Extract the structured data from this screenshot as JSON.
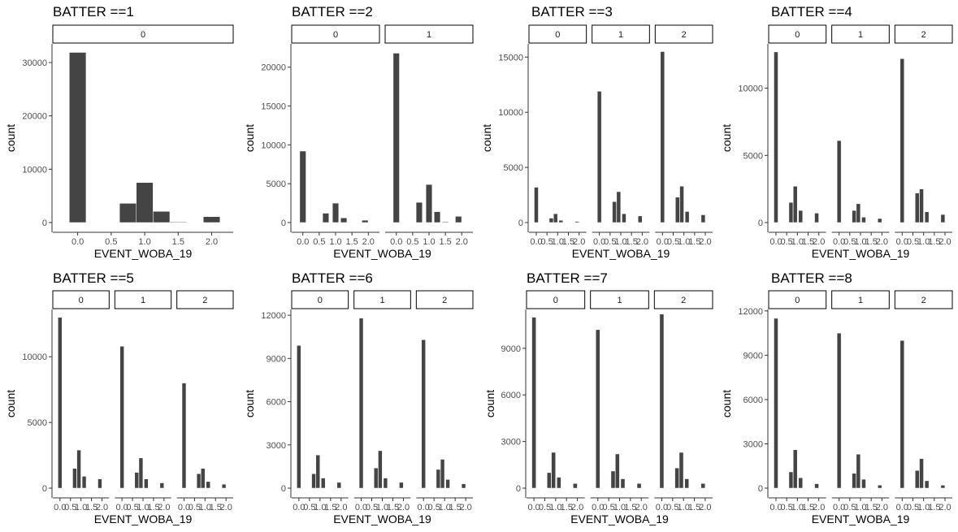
{
  "chart_data": [
    {
      "type": "bar",
      "title": "BATTER ==1",
      "xlabel": "EVENT_WOBA_19",
      "ylabel": "count",
      "yticks": [
        0,
        10000,
        20000,
        30000
      ],
      "ylim": [
        0,
        33500
      ],
      "xticks": [
        "0.0",
        "0.5",
        "1.0",
        "1.5",
        "2.0"
      ],
      "bin_width": 0.25,
      "xlim": [
        -0.25,
        2.2
      ],
      "facets": [
        {
          "label": "0",
          "x": [
            0.0,
            0.75,
            1.0,
            1.25,
            1.5,
            2.0
          ],
          "values": [
            31900,
            3600,
            7500,
            2100,
            100,
            1100
          ]
        }
      ]
    },
    {
      "type": "bar",
      "title": "BATTER ==2",
      "xlabel": "EVENT_WOBA_19",
      "ylabel": "count",
      "yticks": [
        0,
        5000,
        10000,
        15000,
        20000
      ],
      "ylim": [
        0,
        23000
      ],
      "xticks": [
        "0.0",
        "0.5",
        "1.0",
        "1.5",
        "2.0"
      ],
      "bin_width": 0.19,
      "xlim": [
        -0.22,
        2.22
      ],
      "facets": [
        {
          "label": "0",
          "x": [
            0.0,
            0.7,
            1.0,
            1.25,
            1.9
          ],
          "values": [
            9200,
            1200,
            2500,
            600,
            300
          ]
        },
        {
          "label": "1",
          "x": [
            0.0,
            0.7,
            1.0,
            1.25,
            1.5,
            1.9
          ],
          "values": [
            21800,
            2600,
            4900,
            1400,
            100,
            800
          ]
        }
      ]
    },
    {
      "type": "bar",
      "title": "BATTER ==3",
      "xlabel": "EVENT_WOBA_19",
      "ylabel": "count",
      "yticks": [
        0,
        5000,
        10000,
        15000
      ],
      "ylim": [
        0,
        16200
      ],
      "xticks": [
        "0.0",
        "0.5",
        "1.0",
        "1.5",
        "2.0"
      ],
      "bin_width": 0.19,
      "xlim": [
        -0.22,
        2.22
      ],
      "facets": [
        {
          "label": "0",
          "x": [
            0.0,
            0.7,
            0.9,
            1.15,
            1.9
          ],
          "values": [
            3200,
            400,
            800,
            200,
            100
          ]
        },
        {
          "label": "1",
          "x": [
            0.0,
            0.7,
            0.9,
            1.15,
            1.9
          ],
          "values": [
            11900,
            1900,
            2800,
            800,
            600
          ]
        },
        {
          "label": "2",
          "x": [
            0.0,
            0.7,
            0.9,
            1.15,
            1.9
          ],
          "values": [
            15500,
            2300,
            3300,
            1000,
            700
          ]
        }
      ]
    },
    {
      "type": "bar",
      "title": "BATTER ==4",
      "xlabel": "EVENT_WOBA_19",
      "ylabel": "count",
      "yticks": [
        0,
        5000,
        10000
      ],
      "ylim": [
        0,
        13300
      ],
      "xticks": [
        "0.0",
        "0.5",
        "1.0",
        "1.5",
        "2.0"
      ],
      "bin_width": 0.19,
      "xlim": [
        -0.22,
        2.22
      ],
      "facets": [
        {
          "label": "0",
          "x": [
            0.0,
            0.7,
            0.9,
            1.15,
            1.9
          ],
          "values": [
            12700,
            1500,
            2700,
            900,
            700
          ]
        },
        {
          "label": "1",
          "x": [
            0.0,
            0.7,
            0.9,
            1.15,
            1.9
          ],
          "values": [
            6100,
            900,
            1400,
            400,
            300
          ]
        },
        {
          "label": "2",
          "x": [
            0.0,
            0.7,
            0.9,
            1.15,
            1.9
          ],
          "values": [
            12200,
            2200,
            2500,
            800,
            600
          ]
        }
      ]
    },
    {
      "type": "bar",
      "title": "BATTER ==5",
      "xlabel": "EVENT_WOBA_19",
      "ylabel": "count",
      "yticks": [
        0,
        5000,
        10000
      ],
      "ylim": [
        0,
        13600
      ],
      "xticks": [
        "0.0",
        "0.5",
        "1.0",
        "1.5",
        "2.0"
      ],
      "bin_width": 0.19,
      "xlim": [
        -0.22,
        2.22
      ],
      "facets": [
        {
          "label": "0",
          "x": [
            0.0,
            0.7,
            0.9,
            1.15,
            1.9
          ],
          "values": [
            13000,
            1500,
            2900,
            900,
            700
          ]
        },
        {
          "label": "1",
          "x": [
            0.0,
            0.7,
            0.9,
            1.15,
            1.9
          ],
          "values": [
            10800,
            1200,
            2300,
            700,
            400
          ]
        },
        {
          "label": "2",
          "x": [
            0.0,
            0.7,
            0.9,
            1.15,
            1.9
          ],
          "values": [
            8000,
            1100,
            1500,
            500,
            300
          ]
        }
      ]
    },
    {
      "type": "bar",
      "title": "BATTER ==6",
      "xlabel": "EVENT_WOBA_19",
      "ylabel": "count",
      "yticks": [
        0,
        3000,
        6000,
        9000,
        12000
      ],
      "ylim": [
        0,
        12400
      ],
      "xticks": [
        "0.0",
        "0.5",
        "1.0",
        "1.5",
        "2.0"
      ],
      "bin_width": 0.19,
      "xlim": [
        -0.22,
        2.22
      ],
      "facets": [
        {
          "label": "0",
          "x": [
            0.0,
            0.7,
            0.9,
            1.15,
            1.9
          ],
          "values": [
            9900,
            1000,
            2300,
            700,
            400
          ]
        },
        {
          "label": "1",
          "x": [
            0.0,
            0.7,
            0.9,
            1.15,
            1.9
          ],
          "values": [
            11800,
            1400,
            2600,
            700,
            400
          ]
        },
        {
          "label": "2",
          "x": [
            0.0,
            0.7,
            0.9,
            1.15,
            1.9
          ],
          "values": [
            10300,
            1300,
            2000,
            600,
            300
          ]
        }
      ]
    },
    {
      "type": "bar",
      "title": "BATTER ==7",
      "xlabel": "EVENT_WOBA_19",
      "ylabel": "count",
      "yticks": [
        0,
        3000,
        6000,
        9000
      ],
      "ylim": [
        0,
        11500
      ],
      "xticks": [
        "0.0",
        "0.5",
        "1.0",
        "1.5",
        "2.0"
      ],
      "bin_width": 0.19,
      "xlim": [
        -0.22,
        2.22
      ],
      "facets": [
        {
          "label": "0",
          "x": [
            0.0,
            0.7,
            0.9,
            1.15,
            1.9
          ],
          "values": [
            11000,
            1000,
            2300,
            700,
            300
          ]
        },
        {
          "label": "1",
          "x": [
            0.0,
            0.7,
            0.9,
            1.15,
            1.9
          ],
          "values": [
            10200,
            1100,
            2200,
            600,
            300
          ]
        },
        {
          "label": "2",
          "x": [
            0.0,
            0.7,
            0.9,
            1.15,
            1.9
          ],
          "values": [
            11200,
            1300,
            2300,
            600,
            300
          ]
        }
      ]
    },
    {
      "type": "bar",
      "title": "BATTER ==8",
      "xlabel": "EVENT_WOBA_19",
      "ylabel": "count",
      "yticks": [
        0,
        3000,
        6000,
        9000,
        12000
      ],
      "ylim": [
        0,
        12100
      ],
      "xticks": [
        "0.0",
        "0.5",
        "1.0",
        "1.5",
        "2.0"
      ],
      "bin_width": 0.19,
      "xlim": [
        -0.22,
        2.22
      ],
      "facets": [
        {
          "label": "0",
          "x": [
            0.0,
            0.7,
            0.9,
            1.15,
            1.9
          ],
          "values": [
            11500,
            1100,
            2600,
            700,
            300
          ]
        },
        {
          "label": "1",
          "x": [
            0.0,
            0.7,
            0.9,
            1.15,
            1.9
          ],
          "values": [
            10500,
            1000,
            2300,
            600,
            200
          ]
        },
        {
          "label": "2",
          "x": [
            0.0,
            0.7,
            0.9,
            1.15,
            1.9
          ],
          "values": [
            10000,
            1200,
            2000,
            500,
            200
          ]
        }
      ]
    }
  ],
  "colors": {
    "bar_fill": "#444444",
    "bar_edge": "#ffffff",
    "axis": "#333333",
    "text": "#000000",
    "tick_text": "#4d4d4d",
    "strip_fill": "#ffffff",
    "strip_border": "#000000"
  }
}
